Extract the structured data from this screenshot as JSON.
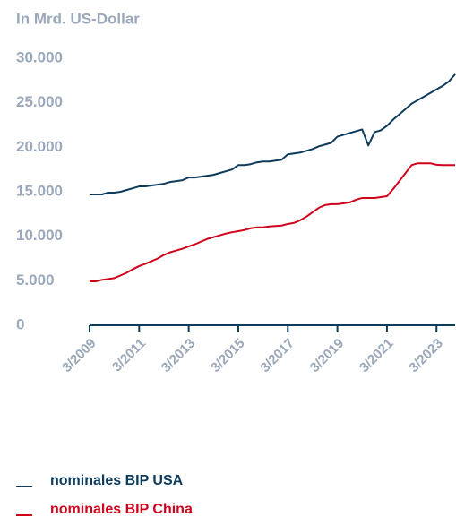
{
  "chart_data": {
    "type": "line",
    "title": "In Mrd. US-Dollar",
    "categories": [
      "3/2009",
      null,
      null,
      null,
      null,
      null,
      null,
      null,
      "3/2011",
      null,
      null,
      null,
      null,
      null,
      null,
      null,
      "3/2013",
      null,
      null,
      null,
      null,
      null,
      null,
      null,
      "3/2015",
      null,
      null,
      null,
      null,
      null,
      null,
      null,
      "3/2017",
      null,
      null,
      null,
      null,
      null,
      null,
      null,
      "3/2019",
      null,
      null,
      null,
      null,
      null,
      null,
      null,
      "3/2021",
      null,
      null,
      null,
      null,
      null,
      null,
      null,
      "3/2023",
      null,
      null,
      null
    ],
    "series": [
      {
        "name": "nominales BIP USA",
        "color": "#0d3b5c",
        "values": [
          14700,
          14700,
          14700,
          14900,
          14900,
          15000,
          15200,
          15400,
          15600,
          15600,
          15700,
          15800,
          15900,
          16100,
          16200,
          16300,
          16600,
          16600,
          16700,
          16800,
          16900,
          17100,
          17300,
          17500,
          18000,
          18000,
          18100,
          18300,
          18400,
          18400,
          18500,
          18600,
          19200,
          19300,
          19400,
          19600,
          19800,
          20100,
          20300,
          20500,
          21200,
          21400,
          21600,
          21800,
          22000,
          20200,
          21700,
          21900,
          22400,
          23100,
          23700,
          24300,
          24900,
          25300,
          25700,
          26100,
          26500,
          26900,
          27400,
          28200
        ]
      },
      {
        "name": "nominales BIP China",
        "color": "#d0021b",
        "values": [
          4930,
          4930,
          5100,
          5200,
          5300,
          5600,
          5900,
          6300,
          6650,
          6900,
          7200,
          7500,
          7900,
          8200,
          8400,
          8600,
          8860,
          9100,
          9400,
          9700,
          9900,
          10100,
          10300,
          10450,
          10570,
          10700,
          10900,
          11000,
          11000,
          11100,
          11150,
          11200,
          11380,
          11500,
          11800,
          12200,
          12700,
          13200,
          13500,
          13600,
          13600,
          13700,
          13800,
          14100,
          14300,
          14300,
          14300,
          14400,
          14500,
          15300,
          16200,
          17100,
          18000,
          18200,
          18200,
          18200,
          18030,
          18000,
          18000,
          18000
        ]
      }
    ],
    "ylim": [
      0,
      30000
    ],
    "yticks": [
      0,
      {
        "value": 5000,
        "label": "5.000"
      },
      {
        "value": 10000,
        "label": "10.000"
      },
      {
        "value": 15000,
        "label": "15.000"
      },
      {
        "value": 20000,
        "label": "20.000"
      },
      {
        "value": 25000,
        "label": "25.000"
      },
      {
        "value": 30000,
        "label": "30.000"
      }
    ],
    "grid": false
  }
}
